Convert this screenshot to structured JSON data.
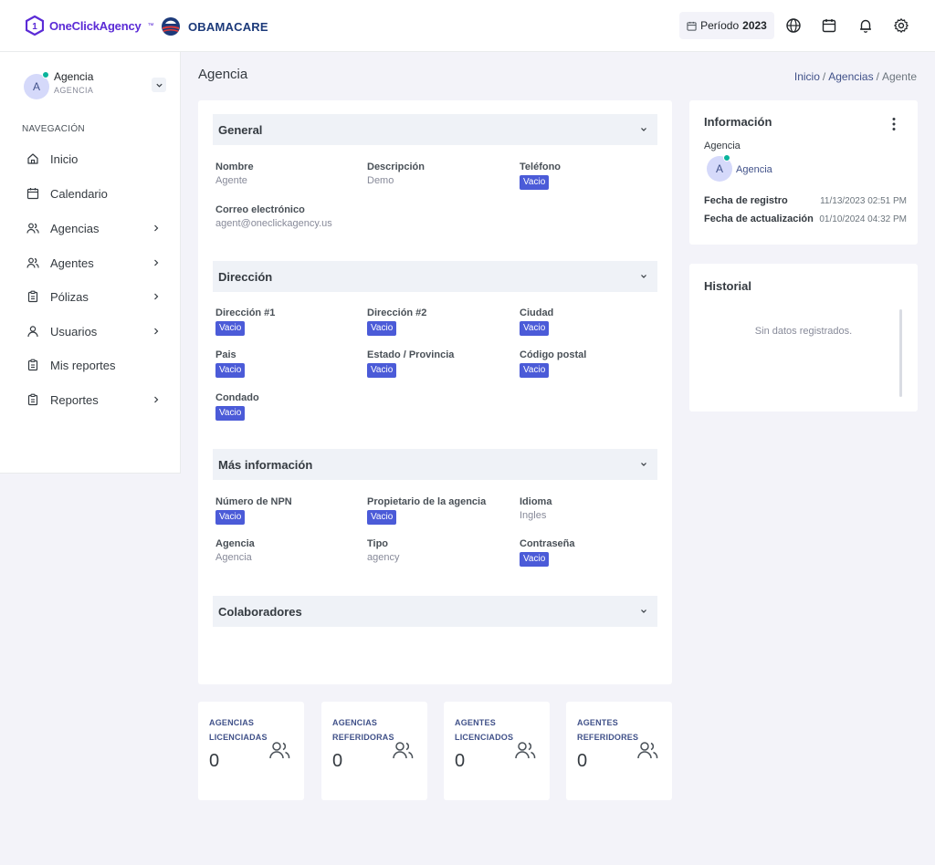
{
  "brand": {
    "name": "OneClickAgency",
    "tm": "™",
    "partner": "OBAMACARE"
  },
  "topbar": {
    "period_label": "Período",
    "period_year": "2023",
    "icons": [
      "globe-icon",
      "calendar-icon",
      "bell-icon",
      "gear-icon"
    ]
  },
  "sidebar": {
    "user": {
      "initial": "A",
      "name": "Agencia",
      "role": "AGENCIA"
    },
    "nav_heading": "NAVEGACIÓN",
    "items": [
      {
        "label": "Inicio",
        "icon": "home-icon",
        "has_children": false
      },
      {
        "label": "Calendario",
        "icon": "calendar-icon",
        "has_children": false
      },
      {
        "label": "Agencias",
        "icon": "users-icon",
        "has_children": true
      },
      {
        "label": "Agentes",
        "icon": "users-icon",
        "has_children": true
      },
      {
        "label": "Pólizas",
        "icon": "clipboard-icon",
        "has_children": true
      },
      {
        "label": "Usuarios",
        "icon": "user-icon",
        "has_children": true
      },
      {
        "label": "Mis reportes",
        "icon": "clipboard-icon",
        "has_children": false
      },
      {
        "label": "Reportes",
        "icon": "clipboard-icon",
        "has_children": true
      }
    ]
  },
  "page": {
    "title": "Agencia",
    "breadcrumb": [
      "Inicio",
      "Agencias",
      "Agente"
    ]
  },
  "sections": {
    "general": {
      "title": "General",
      "fields": [
        {
          "label": "Nombre",
          "value": "Agente"
        },
        {
          "label": "Descripción",
          "value": "Demo"
        },
        {
          "label": "Teléfono",
          "value": "Vacio"
        },
        {
          "label": "Correo electrónico",
          "value": "agent@oneclickagency.us"
        }
      ]
    },
    "direccion": {
      "title": "Dirección",
      "fields": [
        {
          "label": "Dirección #1",
          "value": "Vacio"
        },
        {
          "label": "Dirección #2",
          "value": "Vacio"
        },
        {
          "label": "Ciudad",
          "value": "Vacio"
        },
        {
          "label": "Pais",
          "value": "Vacio"
        },
        {
          "label": "Estado / Provincia",
          "value": "Vacio"
        },
        {
          "label": "Código postal",
          "value": "Vacio"
        },
        {
          "label": "Condado",
          "value": "Vacio"
        }
      ]
    },
    "mas_info": {
      "title": "Más información",
      "fields": [
        {
          "label": "Número de NPN",
          "value": "Vacio"
        },
        {
          "label": "Propietario de la agencia",
          "value": "Vacio"
        },
        {
          "label": "Idioma",
          "value": "Ingles"
        },
        {
          "label": "Agencia",
          "value": "Agencia"
        },
        {
          "label": "Tipo",
          "value": "agency"
        },
        {
          "label": "Contraseña",
          "value": "Vacio"
        }
      ]
    },
    "colaboradores": {
      "title": "Colaboradores"
    }
  },
  "info_card": {
    "title": "Información",
    "agencia_label": "Agencia",
    "agencia_initial": "A",
    "agencia_link": "Agencia",
    "rows": [
      {
        "label": "Fecha de registro",
        "value": "11/13/2023 02:51 PM"
      },
      {
        "label": "Fecha de actualización",
        "value": "01/10/2024 04:32 PM"
      }
    ]
  },
  "historial": {
    "title": "Historial",
    "empty": "Sin datos registrados."
  },
  "stats": [
    {
      "label": "AGENCIAS LICENCIADAS",
      "value": "0"
    },
    {
      "label": "AGENCIAS REFERIDORAS",
      "value": "0"
    },
    {
      "label": "AGENTES LICENCIADOS",
      "value": "0"
    },
    {
      "label": "AGENTES REFERIDORES",
      "value": "0"
    }
  ],
  "colors": {
    "accent": "#405189",
    "badge": "#4b5bd8",
    "online": "#0ab39c",
    "brand": "#5b2bd6"
  }
}
